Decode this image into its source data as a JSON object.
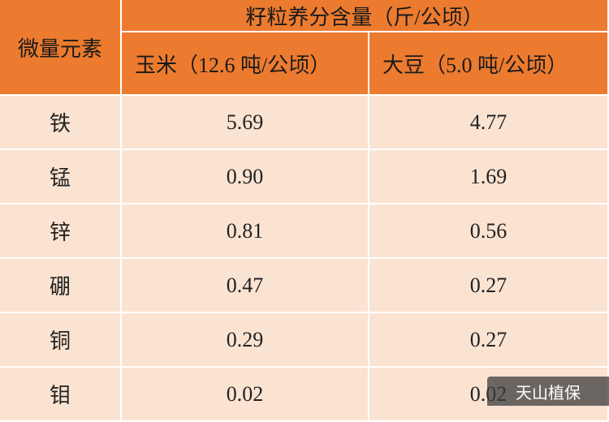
{
  "header": {
    "row_label": "微量元素",
    "title": "籽粒养分含量（斤/公顷）",
    "columns": [
      "玉米（12.6 吨/公顷）",
      "大豆（5.0 吨/公顷）"
    ]
  },
  "table": {
    "rows": [
      [
        "铁",
        "5.69",
        "4.77"
      ],
      [
        "锰",
        "0.90",
        "1.69"
      ],
      [
        "锌",
        "0.81",
        "0.56"
      ],
      [
        "硼",
        "0.47",
        "0.27"
      ],
      [
        "铜",
        "0.29",
        "0.27"
      ],
      [
        "钼",
        "0.02",
        "0.02"
      ]
    ]
  },
  "watermark": "天山植保"
}
